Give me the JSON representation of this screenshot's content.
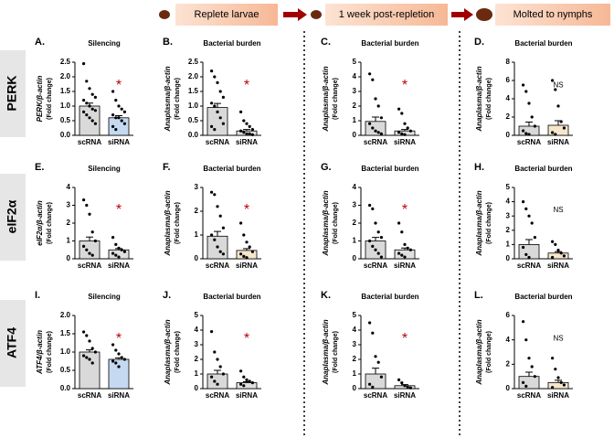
{
  "header": {
    "stages": [
      "Replete larvae",
      "1 week post-repletion",
      "Molted to nymphs"
    ]
  },
  "rows": [
    "PERK",
    "eIF2α",
    "ATF4"
  ],
  "chart_data": [
    {
      "type": "bar",
      "panel_label": "A.",
      "title": "Silencing",
      "ylabel": "PERK/β-actin",
      "ylabel2": "(Fold change)",
      "categories": [
        "scRNA",
        "siRNA"
      ],
      "values": [
        1.0,
        0.6
      ],
      "errors": [
        0.1,
        0.07
      ],
      "points": [
        [
          2.45,
          1.85,
          1.6,
          1.4,
          1.3,
          1.2,
          1.1,
          1.0,
          0.9,
          0.85,
          0.8,
          0.7,
          0.6,
          0.5,
          0.4
        ],
        [
          1.5,
          1.2,
          1.0,
          0.9,
          0.8,
          0.7,
          0.6,
          0.6,
          0.5,
          0.4,
          0.3,
          0.2
        ]
      ],
      "colors": [
        "#d9d9d9",
        "#c5d9f1"
      ],
      "ylim": [
        0,
        2.5
      ],
      "yticks": [
        {
          "value": 0,
          "label": "0.0"
        },
        0.5,
        {
          "value": 1,
          "label": "1.0"
        },
        1.5,
        {
          "value": 2,
          "label": "2.0"
        },
        2.5
      ],
      "annotation": "*"
    },
    {
      "type": "bar",
      "panel_label": "B.",
      "title": "Bacterial burden",
      "ylabel": "Anaplasma/β-actin",
      "ylabel2": "(Fold change)",
      "categories": [
        "scRNA",
        "siRNA"
      ],
      "values": [
        0.95,
        0.15
      ],
      "errors": [
        0.14,
        0.05
      ],
      "points": [
        [
          2.2,
          2.0,
          1.8,
          1.5,
          1.3,
          1.1,
          1.0,
          0.8,
          0.6,
          0.4,
          0.3,
          0.2
        ],
        [
          0.8,
          0.5,
          0.4,
          0.3,
          0.2,
          0.15,
          0.1,
          0.05,
          0.05,
          0.02
        ]
      ],
      "colors": [
        "#d9d9d9",
        "#e0e0e0"
      ],
      "ylim": [
        0,
        2.5
      ],
      "yticks": [
        {
          "value": 0,
          "label": "0.0"
        },
        0.5,
        {
          "value": 1,
          "label": "1.0"
        },
        1.5,
        {
          "value": 2,
          "label": "2.0"
        },
        2.5
      ],
      "annotation": "*"
    },
    {
      "type": "bar",
      "panel_label": "C.",
      "title": "Bacterial burden",
      "ylabel": "Anaplasma/β-actin",
      "ylabel2": "(Fold change)",
      "categories": [
        "scRNA",
        "siRNA"
      ],
      "values": [
        0.95,
        0.3
      ],
      "errors": [
        0.3,
        0.1
      ],
      "points": [
        [
          4.2,
          3.8,
          2.5,
          2.0,
          1.2,
          0.8,
          0.5,
          0.3,
          0.2,
          0.1
        ],
        [
          1.8,
          1.5,
          0.8,
          0.5,
          0.3,
          0.2,
          0.1,
          0.05
        ]
      ],
      "colors": [
        "#d9d9d9",
        "#e0e0e0"
      ],
      "ylim": [
        0,
        5
      ],
      "yticks": [
        0,
        1,
        2,
        3,
        4,
        5
      ],
      "annotation": "*"
    },
    {
      "type": "bar",
      "panel_label": "D.",
      "title": "Bacterial burden",
      "ylabel": "Anaplasma/β-actin",
      "ylabel2": "(Fold change)",
      "categories": [
        "scRNA",
        "siRNA"
      ],
      "values": [
        1.0,
        1.1
      ],
      "errors": [
        0.45,
        0.5
      ],
      "points": [
        [
          5.5,
          4.8,
          3.5,
          2.0,
          1.0,
          0.5,
          0.2,
          0.1
        ],
        [
          6.0,
          5.0,
          3.2,
          1.5,
          0.8,
          0.3,
          0.1
        ]
      ],
      "colors": [
        "#d9d9d9",
        "#f5e6cc"
      ],
      "ylim": [
        0,
        8
      ],
      "yticks": [
        0,
        2,
        4,
        6,
        8
      ],
      "annotation": "NS"
    },
    {
      "type": "bar",
      "panel_label": "E.",
      "title": "Silencing",
      "ylabel": "eIF2α/β-actin",
      "ylabel2": "(Fold change)",
      "categories": [
        "scRNA",
        "siRNA"
      ],
      "values": [
        1.0,
        0.5
      ],
      "errors": [
        0.22,
        0.07
      ],
      "points": [
        [
          3.3,
          3.0,
          2.5,
          1.5,
          1.0,
          0.7,
          0.5,
          0.3,
          0.2
        ],
        [
          1.2,
          0.8,
          0.6,
          0.5,
          0.4,
          0.3,
          0.2,
          0.1
        ]
      ],
      "colors": [
        "#d9d9d9",
        "#e0e0e0"
      ],
      "ylim": [
        0,
        4
      ],
      "yticks": [
        0,
        1,
        2,
        3,
        4
      ],
      "annotation": "*"
    },
    {
      "type": "bar",
      "panel_label": "F.",
      "title": "Bacterial burden",
      "ylabel": "Anaplasma/β-actin",
      "ylabel2": "(Fold change)",
      "categories": [
        "scRNA",
        "siRNA"
      ],
      "values": [
        0.95,
        0.35
      ],
      "errors": [
        0.2,
        0.08
      ],
      "points": [
        [
          2.8,
          2.7,
          2.2,
          1.8,
          1.3,
          1.0,
          0.8,
          0.5,
          0.3,
          0.2
        ],
        [
          1.5,
          1.0,
          0.7,
          0.5,
          0.3,
          0.2,
          0.1,
          0.05
        ]
      ],
      "colors": [
        "#d9d9d9",
        "#f5e6cc"
      ],
      "ylim": [
        0,
        3
      ],
      "yticks": [
        0,
        1,
        2,
        3
      ],
      "annotation": "*"
    },
    {
      "type": "bar",
      "panel_label": "G.",
      "title": "Bacterial burden",
      "ylabel": "Anaplasma/β-actin",
      "ylabel2": "(Fold change)",
      "categories": [
        "scRNA",
        "siRNA"
      ],
      "values": [
        1.0,
        0.5
      ],
      "errors": [
        0.2,
        0.1
      ],
      "points": [
        [
          3.0,
          2.8,
          2.0,
          1.5,
          1.2,
          1.0,
          0.7,
          0.5,
          0.3,
          0.1
        ],
        [
          2.0,
          1.5,
          0.8,
          0.6,
          0.5,
          0.3,
          0.2,
          0.1
        ]
      ],
      "colors": [
        "#d9d9d9",
        "#e0e0e0"
      ],
      "ylim": [
        0,
        4
      ],
      "yticks": [
        0,
        1,
        2,
        3,
        4
      ],
      "annotation": "*"
    },
    {
      "type": "bar",
      "panel_label": "H.",
      "title": "Bacterial burden",
      "ylabel": "Anaplasma/β-actin",
      "ylabel2": "(Fold change)",
      "categories": [
        "scRNA",
        "siRNA"
      ],
      "values": [
        1.0,
        0.4
      ],
      "errors": [
        0.35,
        0.1
      ],
      "points": [
        [
          4.0,
          3.5,
          3.0,
          2.5,
          1.5,
          0.8,
          0.3,
          0.1
        ],
        [
          1.2,
          1.0,
          0.6,
          0.4,
          0.2,
          0.1
        ]
      ],
      "colors": [
        "#d9d9d9",
        "#f5e6cc"
      ],
      "ylim": [
        0,
        5
      ],
      "yticks": [
        0,
        1,
        2,
        3,
        4,
        5
      ],
      "annotation": "NS"
    },
    {
      "type": "bar",
      "panel_label": "I.",
      "title": "Silencing",
      "ylabel": "ATF4/β-actin",
      "ylabel2": "(Fold change)",
      "categories": [
        "scRNA",
        "siRNA"
      ],
      "values": [
        1.0,
        0.8
      ],
      "errors": [
        0.06,
        0.04
      ],
      "points": [
        [
          1.55,
          1.45,
          1.3,
          1.1,
          1.0,
          0.9,
          0.85,
          0.8,
          0.7
        ],
        [
          1.2,
          1.05,
          0.95,
          0.85,
          0.8,
          0.75,
          0.7,
          0.6
        ]
      ],
      "colors": [
        "#d9d9d9",
        "#c5d9f1"
      ],
      "ylim": [
        0,
        2
      ],
      "yticks": [
        {
          "value": 0,
          "label": "0.0"
        },
        0.5,
        {
          "value": 1,
          "label": "1.0"
        },
        1.5,
        {
          "value": 2,
          "label": "2.0"
        }
      ],
      "annotation": "*"
    },
    {
      "type": "bar",
      "panel_label": "J.",
      "title": "Bacterial burden",
      "ylabel": "Anaplasma/β-actin",
      "ylabel2": "(Fold change)",
      "categories": [
        "scRNA",
        "siRNA"
      ],
      "values": [
        1.0,
        0.4
      ],
      "errors": [
        0.25,
        0.07
      ],
      "points": [
        [
          3.9,
          2.5,
          2.0,
          1.5,
          1.0,
          0.8,
          0.5,
          0.3
        ],
        [
          1.2,
          0.8,
          0.6,
          0.5,
          0.4,
          0.3,
          0.2
        ]
      ],
      "colors": [
        "#d9d9d9",
        "#e0e0e0"
      ],
      "ylim": [
        0,
        5
      ],
      "yticks": [
        0,
        1,
        2,
        3,
        4,
        5
      ],
      "annotation": "*"
    },
    {
      "type": "bar",
      "panel_label": "K.",
      "title": "Bacterial burden",
      "ylabel": "Anaplasma/β-actin",
      "ylabel2": "(Fold change)",
      "categories": [
        "scRNA",
        "siRNA"
      ],
      "values": [
        1.0,
        0.2
      ],
      "errors": [
        0.4,
        0.07
      ],
      "points": [
        [
          4.5,
          3.8,
          2.2,
          1.8,
          0.8,
          0.3,
          0.1
        ],
        [
          0.6,
          0.4,
          0.2,
          0.1,
          0.05
        ]
      ],
      "colors": [
        "#d9d9d9",
        "#e0e0e0"
      ],
      "ylim": [
        0,
        5
      ],
      "yticks": [
        0,
        1,
        2,
        3,
        4,
        5
      ],
      "annotation": "*"
    },
    {
      "type": "bar",
      "panel_label": "L.",
      "title": "Bacterial burden",
      "ylabel": "Anaplasma/β-actin",
      "ylabel2": "(Fold change)",
      "categories": [
        "scRNA",
        "siRNA"
      ],
      "values": [
        1.0,
        0.5
      ],
      "errors": [
        0.35,
        0.18
      ],
      "points": [
        [
          5.5,
          4.0,
          2.5,
          1.8,
          1.0,
          0.5,
          0.2
        ],
        [
          2.5,
          1.6,
          0.9,
          0.5,
          0.3,
          0.1
        ]
      ],
      "colors": [
        "#d9d9d9",
        "#f5e6cc"
      ],
      "ylim": [
        0,
        6
      ],
      "yticks": [
        0,
        2,
        4,
        6
      ],
      "annotation": "NS"
    }
  ]
}
